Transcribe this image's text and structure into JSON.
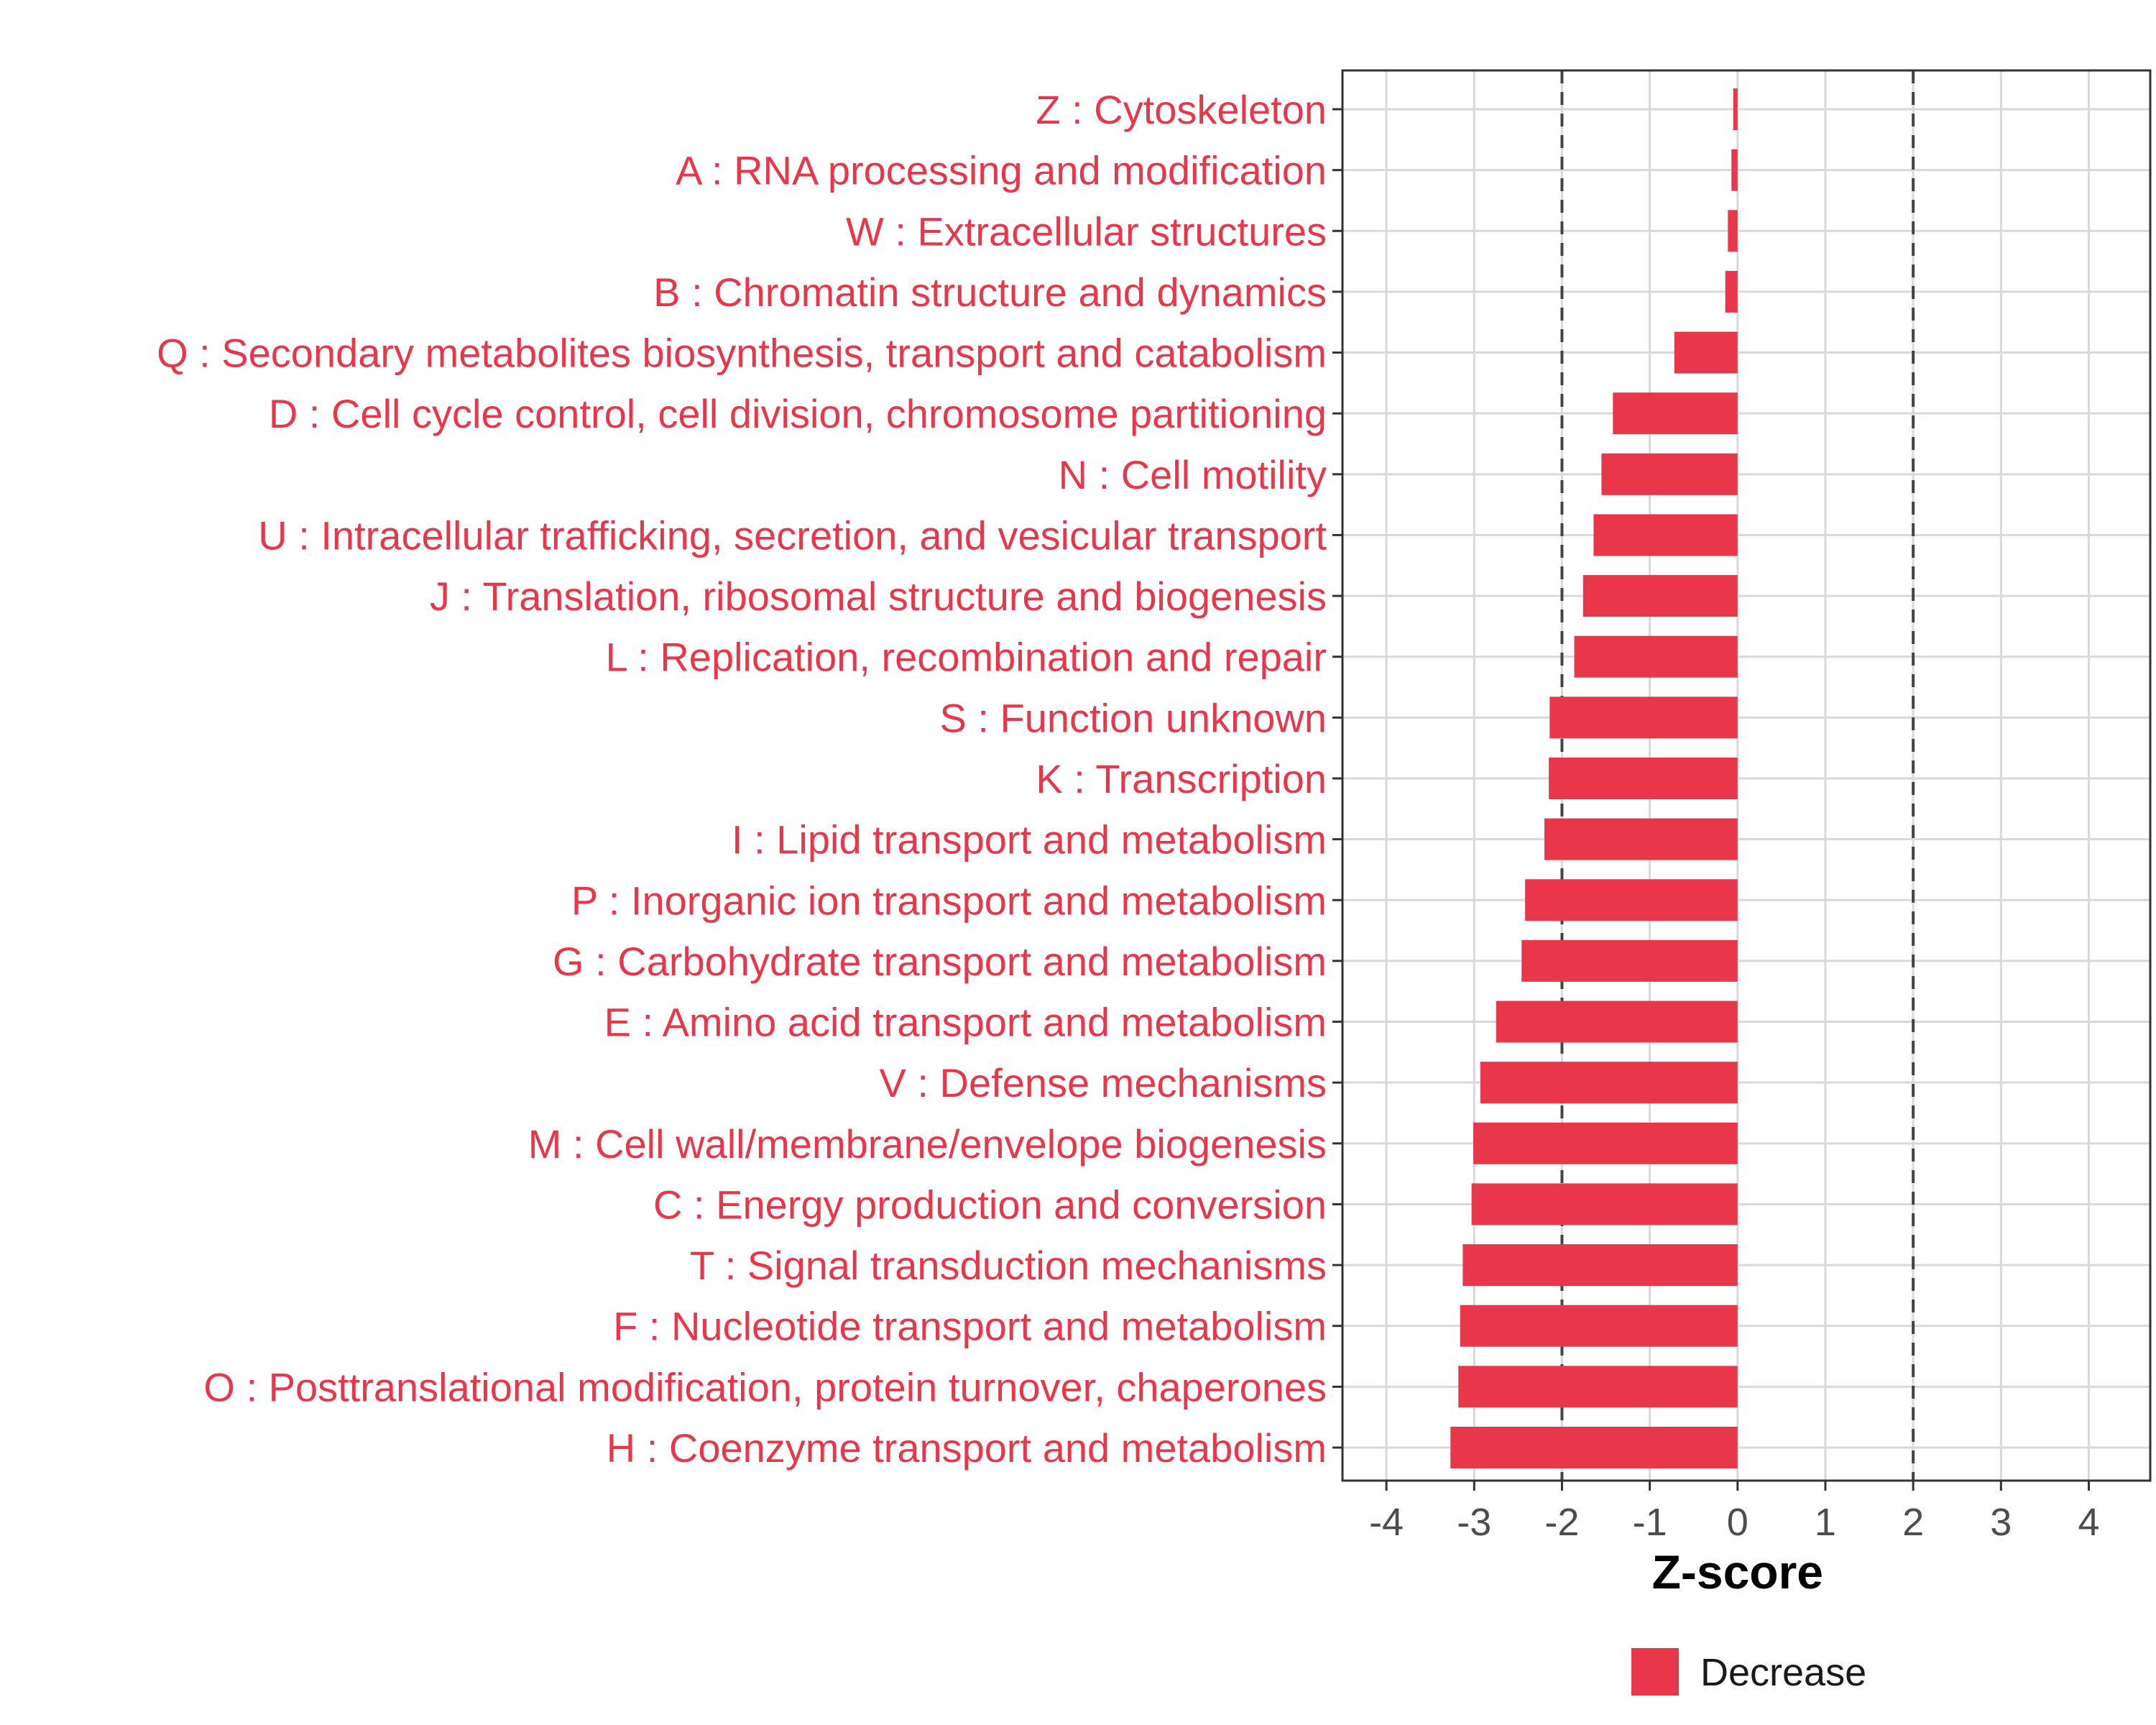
{
  "chart_data": {
    "type": "bar",
    "orientation": "horizontal",
    "title": "",
    "xlabel": "Z-score",
    "ylabel": "",
    "xlim": [
      -4.5,
      4.7
    ],
    "xticks": [
      -4,
      -3,
      -2,
      -1,
      0,
      1,
      2,
      3,
      4
    ],
    "xtick_labels": [
      "-4",
      "-3",
      "-2",
      "-1",
      "0",
      "1",
      "2",
      "3",
      "4"
    ],
    "reference_lines": [
      -2,
      2
    ],
    "grid": true,
    "legend_position": "bottom",
    "series": [
      {
        "name": "Decrease",
        "color": "#e8374a",
        "categories": [
          "Z : Cytoskeleton",
          "A : RNA processing and modification",
          "W : Extracellular structures",
          "B : Chromatin structure and dynamics",
          "Q : Secondary metabolites biosynthesis, transport and catabolism",
          "D : Cell cycle control, cell division, chromosome partitioning",
          "N : Cell motility",
          "U : Intracellular trafficking, secretion, and vesicular transport",
          "J : Translation, ribosomal structure and biogenesis",
          "L : Replication, recombination and repair",
          "S : Function unknown",
          "K : Transcription",
          "I : Lipid transport and metabolism",
          "P : Inorganic ion transport and metabolism",
          "G : Carbohydrate transport and metabolism",
          "E : Amino acid transport and metabolism",
          "V : Defense mechanisms",
          "M : Cell wall/membrane/envelope biogenesis",
          "C : Energy production and conversion",
          "T : Signal transduction mechanisms",
          "F : Nucleotide transport and metabolism",
          "O : Posttranslational modification, protein turnover, chaperones",
          "H : Coenzyme transport and metabolism"
        ],
        "values": [
          -0.05,
          -0.07,
          -0.11,
          -0.14,
          -0.72,
          -1.42,
          -1.55,
          -1.64,
          -1.76,
          -1.86,
          -2.14,
          -2.15,
          -2.2,
          -2.42,
          -2.46,
          -2.75,
          -2.93,
          -3.01,
          -3.03,
          -3.13,
          -3.16,
          -3.18,
          -3.27
        ]
      }
    ]
  }
}
